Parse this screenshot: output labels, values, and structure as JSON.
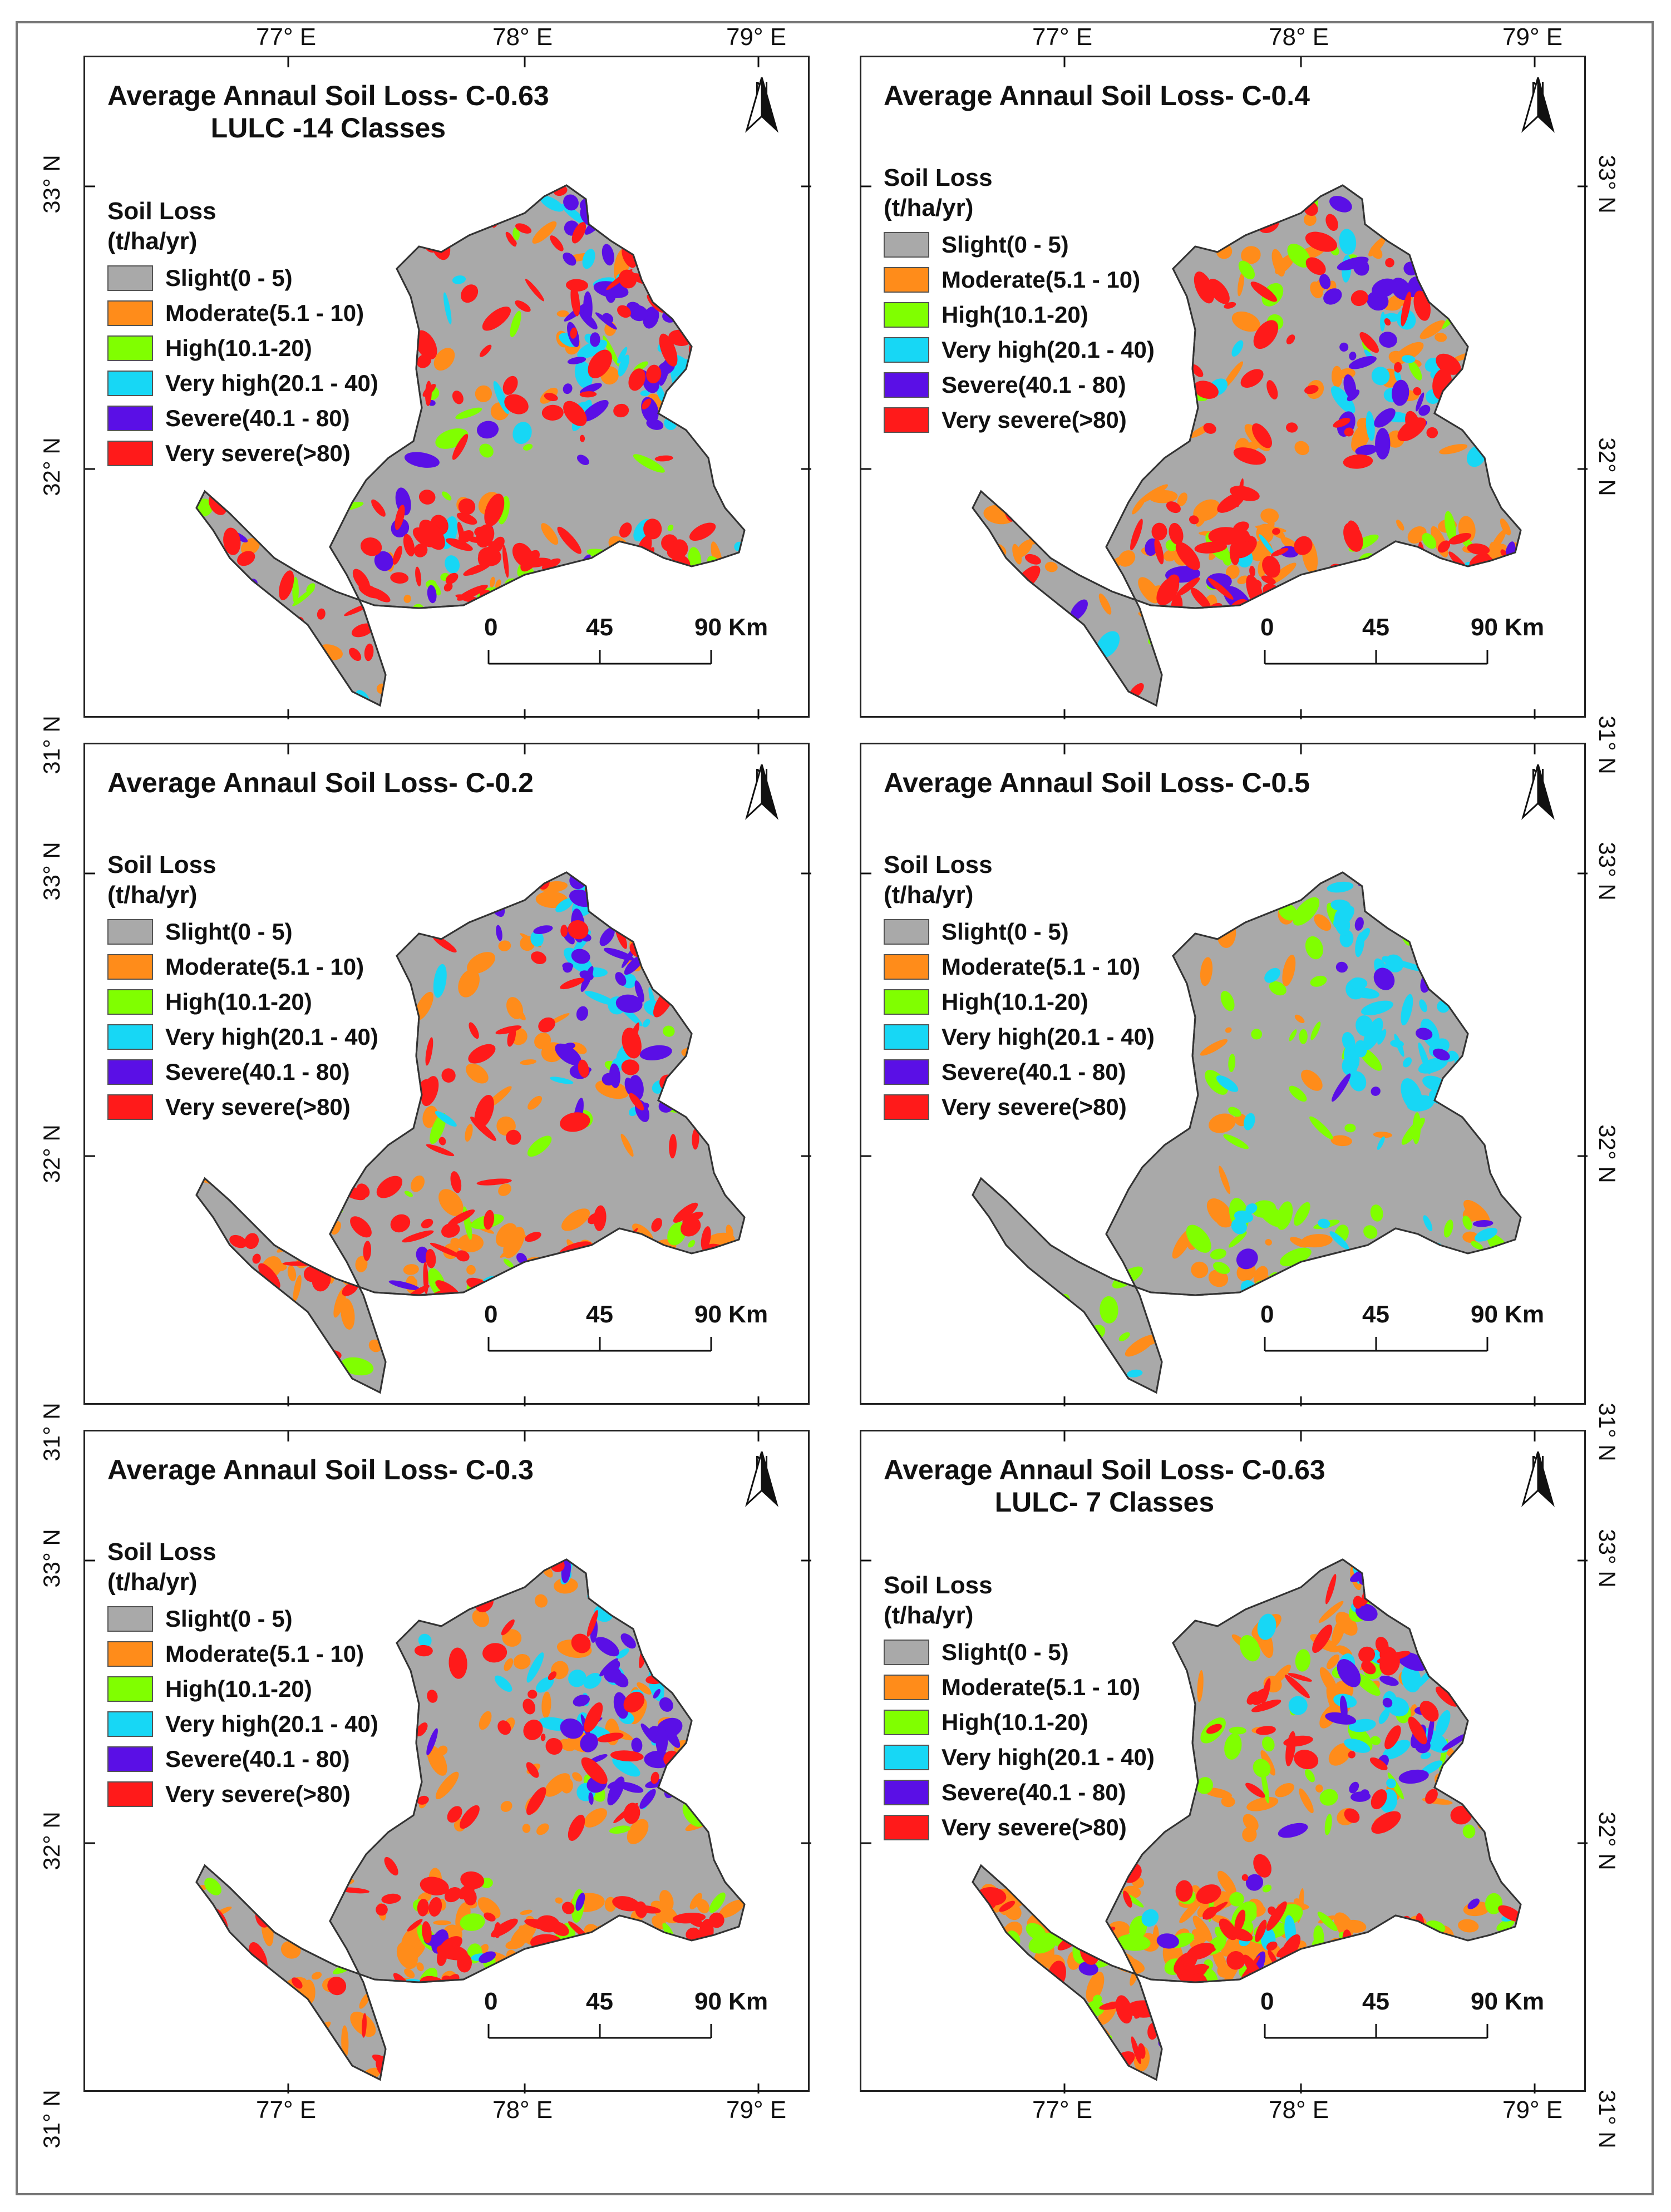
{
  "legend": {
    "heading_line1": "Soil Loss",
    "heading_line2": "(t/ha/yr)",
    "classes": [
      {
        "label": "Slight(0 - 5)",
        "color": "#a9a9a9"
      },
      {
        "label": "Moderate(5.1 - 10)",
        "color": "#ff8c1a"
      },
      {
        "label": "High(10.1-20)",
        "color": "#80ff00"
      },
      {
        "label": "Very high(20.1 - 40)",
        "color": "#17d7f5"
      },
      {
        "label": "Severe(40.1 - 80)",
        "color": "#5a0fe6"
      },
      {
        "label": "Very severe(>80)",
        "color": "#ff1a1a"
      }
    ]
  },
  "north_label": "N",
  "scale_bar": {
    "ticks": [
      "0",
      "45",
      "90 Km"
    ]
  },
  "longitude_labels": [
    "77° E",
    "78° E",
    "79° E"
  ],
  "latitude_labels": [
    "33° N",
    "32° N",
    "31° N"
  ],
  "panels": [
    {
      "title_line1": "Average Annaul Soil Loss- C-0.63",
      "title_line2": "LULC -14 Classes",
      "class_share": {
        "slight": 0.52,
        "moderate": 0.05,
        "high": 0.06,
        "very_high": 0.07,
        "severe": 0.08,
        "very_severe": 0.22
      }
    },
    {
      "title_line1": "Average Annaul Soil Loss- C-0.4",
      "title_line2": "",
      "class_share": {
        "slight": 0.45,
        "moderate": 0.2,
        "high": 0.04,
        "very_high": 0.05,
        "severe": 0.07,
        "very_severe": 0.19
      }
    },
    {
      "title_line1": "Average Annaul Soil Loss- C-0.2",
      "title_line2": "",
      "class_share": {
        "slight": 0.5,
        "moderate": 0.16,
        "high": 0.04,
        "very_high": 0.05,
        "severe": 0.08,
        "very_severe": 0.17
      }
    },
    {
      "title_line1": "Average Annaul Soil Loss- C-0.5",
      "title_line2": "",
      "class_share": {
        "slight": 0.68,
        "moderate": 0.07,
        "high": 0.11,
        "very_high": 0.12,
        "severe": 0.02,
        "very_severe": 0.0
      }
    },
    {
      "title_line1": "Average Annaul Soil Loss- C-0.3",
      "title_line2": "",
      "class_share": {
        "slight": 0.42,
        "moderate": 0.22,
        "high": 0.04,
        "very_high": 0.05,
        "severe": 0.08,
        "very_severe": 0.19
      }
    },
    {
      "title_line1": "Average Annaul Soil Loss- C-0.63",
      "title_line2": "LULC- 7 Classes",
      "class_share": {
        "slight": 0.3,
        "moderate": 0.28,
        "high": 0.14,
        "very_high": 0.05,
        "severe": 0.06,
        "very_severe": 0.17
      }
    }
  ]
}
